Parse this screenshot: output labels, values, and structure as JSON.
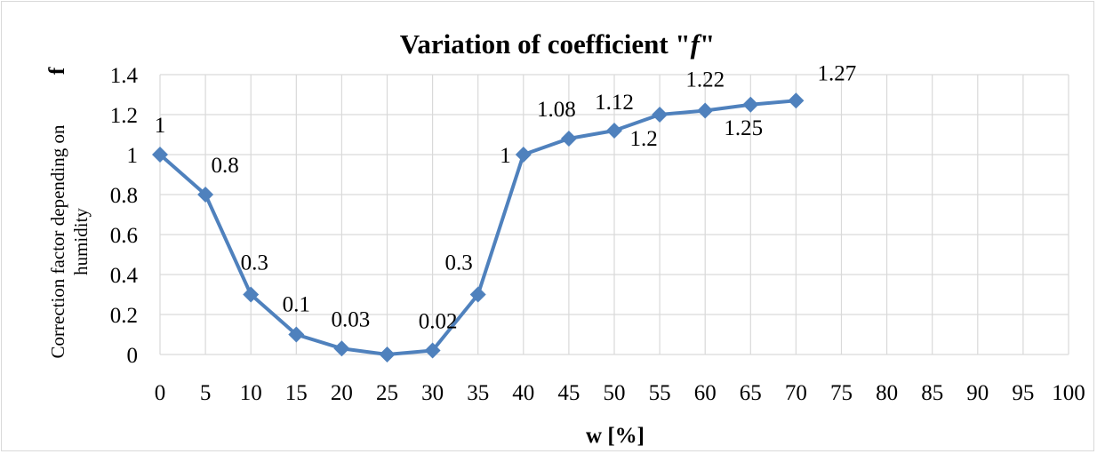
{
  "chart_data": {
    "type": "line",
    "title_prefix": "Variation of coefficient  \"",
    "title_symbol": "f",
    "title_suffix": "\"",
    "xlabel": "w [%]",
    "ylabel_symbol": "f",
    "ylabel_line1": "Correction factor depending on",
    "ylabel_line2": "humidity",
    "xlim": [
      0,
      100
    ],
    "ylim": [
      0,
      1.4
    ],
    "x_ticks": [
      0,
      5,
      10,
      15,
      20,
      25,
      30,
      35,
      40,
      45,
      50,
      55,
      60,
      65,
      70,
      75,
      80,
      85,
      90,
      95,
      100
    ],
    "y_ticks": [
      0,
      0.2,
      0.4,
      0.6,
      0.8,
      1,
      1.2,
      1.4
    ],
    "grid": true,
    "line_color": "#4f81bd",
    "points": [
      {
        "x": 0,
        "y": 1,
        "label": "1"
      },
      {
        "x": 5,
        "y": 0.8,
        "label": "0.8"
      },
      {
        "x": 10,
        "y": 0.3,
        "label": "0.3"
      },
      {
        "x": 15,
        "y": 0.1,
        "label": "0.1"
      },
      {
        "x": 20,
        "y": 0.03,
        "label": "0.03"
      },
      {
        "x": 25,
        "y": 0,
        "label": ""
      },
      {
        "x": 30,
        "y": 0.02,
        "label": "0.02"
      },
      {
        "x": 35,
        "y": 0.3,
        "label": "0.3"
      },
      {
        "x": 40,
        "y": 1,
        "label": "1"
      },
      {
        "x": 45,
        "y": 1.08,
        "label": "1.08"
      },
      {
        "x": 50,
        "y": 1.12,
        "label": "1.12"
      },
      {
        "x": 55,
        "y": 1.2,
        "label": "1.2"
      },
      {
        "x": 60,
        "y": 1.22,
        "label": "1.22"
      },
      {
        "x": 65,
        "y": 1.25,
        "label": "1.25"
      },
      {
        "x": 70,
        "y": 1.27,
        "label": "1.27"
      }
    ]
  }
}
